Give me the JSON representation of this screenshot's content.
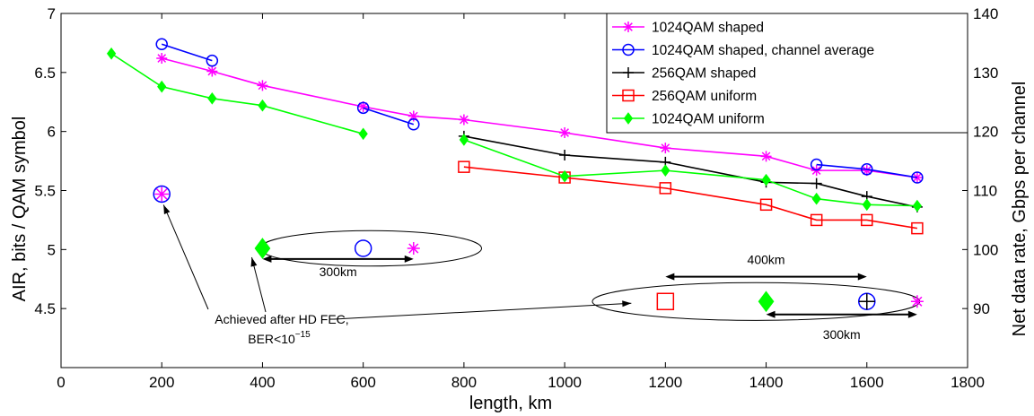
{
  "chart_data": {
    "type": "line",
    "xlabel": "length, km",
    "ylabel_left": "AIR, bits / QAM symbol",
    "ylabel_right": "Net data rate, Gbps per channel",
    "xlim": [
      0,
      1800
    ],
    "ylim_left": [
      4,
      7
    ],
    "ylim_right": [
      80,
      140
    ],
    "xticks": [
      "0",
      "200",
      "400",
      "600",
      "800",
      "1000",
      "1200",
      "1400",
      "1600",
      "1800"
    ],
    "yticks_left": [
      "4.5",
      "5",
      "5.5",
      "6",
      "6.5",
      "7"
    ],
    "yticks_right": [
      "90",
      "100",
      "110",
      "120",
      "130",
      "140"
    ],
    "grid": false,
    "legend_position": "top-right",
    "series": [
      {
        "name": "1024QAM shaped",
        "color": "#ff00ff",
        "marker": "asterisk",
        "segments": [
          [
            [
              200,
              6.62
            ],
            [
              300,
              6.51
            ],
            [
              400,
              6.39
            ],
            [
              600,
              6.21
            ],
            [
              700,
              6.13
            ],
            [
              800,
              6.1
            ],
            [
              1000,
              5.99
            ],
            [
              1200,
              5.86
            ],
            [
              1400,
              5.79
            ],
            [
              1500,
              5.67
            ],
            [
              1600,
              5.67
            ],
            [
              1700,
              5.61
            ]
          ]
        ]
      },
      {
        "name": "1024QAM shaped, channel average",
        "color": "#0000ff",
        "marker": "circle",
        "segments": [
          [
            [
              200,
              6.74
            ],
            [
              300,
              6.6
            ]
          ],
          [
            [
              600,
              6.2
            ],
            [
              700,
              6.06
            ]
          ],
          [
            [
              1500,
              5.72
            ],
            [
              1600,
              5.68
            ],
            [
              1700,
              5.61
            ]
          ]
        ]
      },
      {
        "name": "256QAM shaped",
        "color": "#000000",
        "marker": "plus",
        "segments": [
          [
            [
              800,
              5.96
            ],
            [
              1000,
              5.8
            ],
            [
              1200,
              5.74
            ],
            [
              1400,
              5.57
            ],
            [
              1500,
              5.56
            ],
            [
              1600,
              5.45
            ],
            [
              1700,
              5.36
            ]
          ]
        ]
      },
      {
        "name": "256QAM uniform",
        "color": "#ff0000",
        "marker": "square",
        "segments": [
          [
            [
              800,
              5.7
            ],
            [
              1000,
              5.61
            ],
            [
              1200,
              5.52
            ],
            [
              1400,
              5.38
            ],
            [
              1500,
              5.25
            ],
            [
              1600,
              5.25
            ],
            [
              1700,
              5.18
            ]
          ]
        ]
      },
      {
        "name": "1024QAM uniform",
        "color": "#00ff00",
        "marker": "diamond",
        "segments": [
          [
            [
              100,
              6.66
            ],
            [
              200,
              6.38
            ],
            [
              300,
              6.28
            ],
            [
              400,
              6.22
            ],
            [
              600,
              5.98
            ]
          ],
          [
            [
              800,
              5.93
            ],
            [
              1000,
              5.62
            ],
            [
              1200,
              5.67
            ],
            [
              1400,
              5.59
            ],
            [
              1500,
              5.43
            ],
            [
              1600,
              5.38
            ],
            [
              1700,
              5.37
            ]
          ]
        ]
      }
    ],
    "fec_points": [
      {
        "x": 200,
        "y": 5.47,
        "marker": "circle",
        "color": "#0000ff"
      },
      {
        "x": 200,
        "y": 5.47,
        "marker": "asterisk",
        "color": "#ff00ff"
      }
    ],
    "annotations": {
      "fec_text_line1": "Achieved after HD FEC,",
      "fec_text_line2_prefix": "BER<10",
      "fec_text_line2_exp": "−15",
      "ellipse_left": {
        "cx": 615,
        "cy": 5.01,
        "rx": 440,
        "ry": 0.15,
        "markers": [
          {
            "x": 400,
            "y": 5.01,
            "marker": "diamond",
            "color": "#00ff00"
          },
          {
            "x": 600,
            "y": 5.01,
            "marker": "circle",
            "color": "#0000ff"
          },
          {
            "x": 700,
            "y": 5.01,
            "marker": "asterisk",
            "color": "#ff00ff"
          }
        ],
        "arrow": {
          "x1": 400,
          "x2": 700,
          "y": 4.92,
          "label": "300km"
        }
      },
      "ellipse_right": {
        "cx": 1380,
        "cy": 4.56,
        "rx": 650,
        "ry": 0.16,
        "markers": [
          {
            "x": 1200,
            "y": 4.56,
            "marker": "square",
            "color": "#ff0000"
          },
          {
            "x": 1400,
            "y": 4.56,
            "marker": "diamond",
            "color": "#00ff00"
          },
          {
            "x": 1600,
            "y": 4.56,
            "marker": "circle",
            "color": "#0000ff"
          },
          {
            "x": 1600,
            "y": 4.56,
            "marker": "plus",
            "color": "#000000"
          },
          {
            "x": 1700,
            "y": 4.56,
            "marker": "asterisk",
            "color": "#ff00ff"
          }
        ],
        "arrow_top": {
          "x1": 1200,
          "x2": 1600,
          "y": 4.77,
          "label": "400km"
        },
        "arrow_bottom": {
          "x1": 1400,
          "x2": 1700,
          "y": 4.45,
          "label": "300km"
        }
      }
    }
  }
}
